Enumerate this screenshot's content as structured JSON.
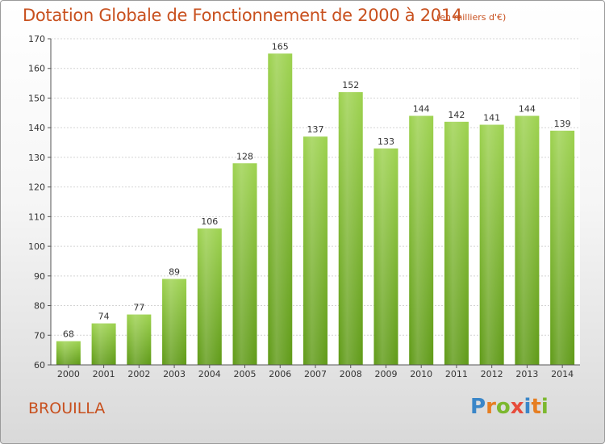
{
  "title": "Dotation Globale de Fonctionnement de 2000 à 2014",
  "unit_note": "(en milliers d'€)",
  "commune": "BROUILLA",
  "logo": {
    "text": "Proxiti",
    "letters": [
      "P",
      "r",
      "o",
      "x",
      "i",
      "t",
      "i"
    ],
    "colors": [
      "#3a86c8",
      "#e67e22",
      "#7cb82f",
      "#e74c3c",
      "#3a86c8",
      "#e67e22",
      "#7cb82f"
    ]
  },
  "chart_data": {
    "type": "bar",
    "title": "Dotation Globale de Fonctionnement de 2000 à 2014",
    "subtitle": "(en milliers d'€)",
    "categories": [
      "2000",
      "2001",
      "2002",
      "2003",
      "2004",
      "2005",
      "2006",
      "2007",
      "2008",
      "2009",
      "2010",
      "2011",
      "2012",
      "2013",
      "2014"
    ],
    "values": [
      68,
      74,
      77,
      89,
      106,
      128,
      165,
      137,
      152,
      133,
      144,
      142,
      141,
      144,
      139
    ],
    "ylim": [
      60,
      170
    ],
    "yticks": [
      60,
      70,
      80,
      90,
      100,
      110,
      120,
      130,
      140,
      150,
      160,
      170
    ],
    "grid": true,
    "bar_color": "#7cb82f",
    "data_labels": true
  }
}
